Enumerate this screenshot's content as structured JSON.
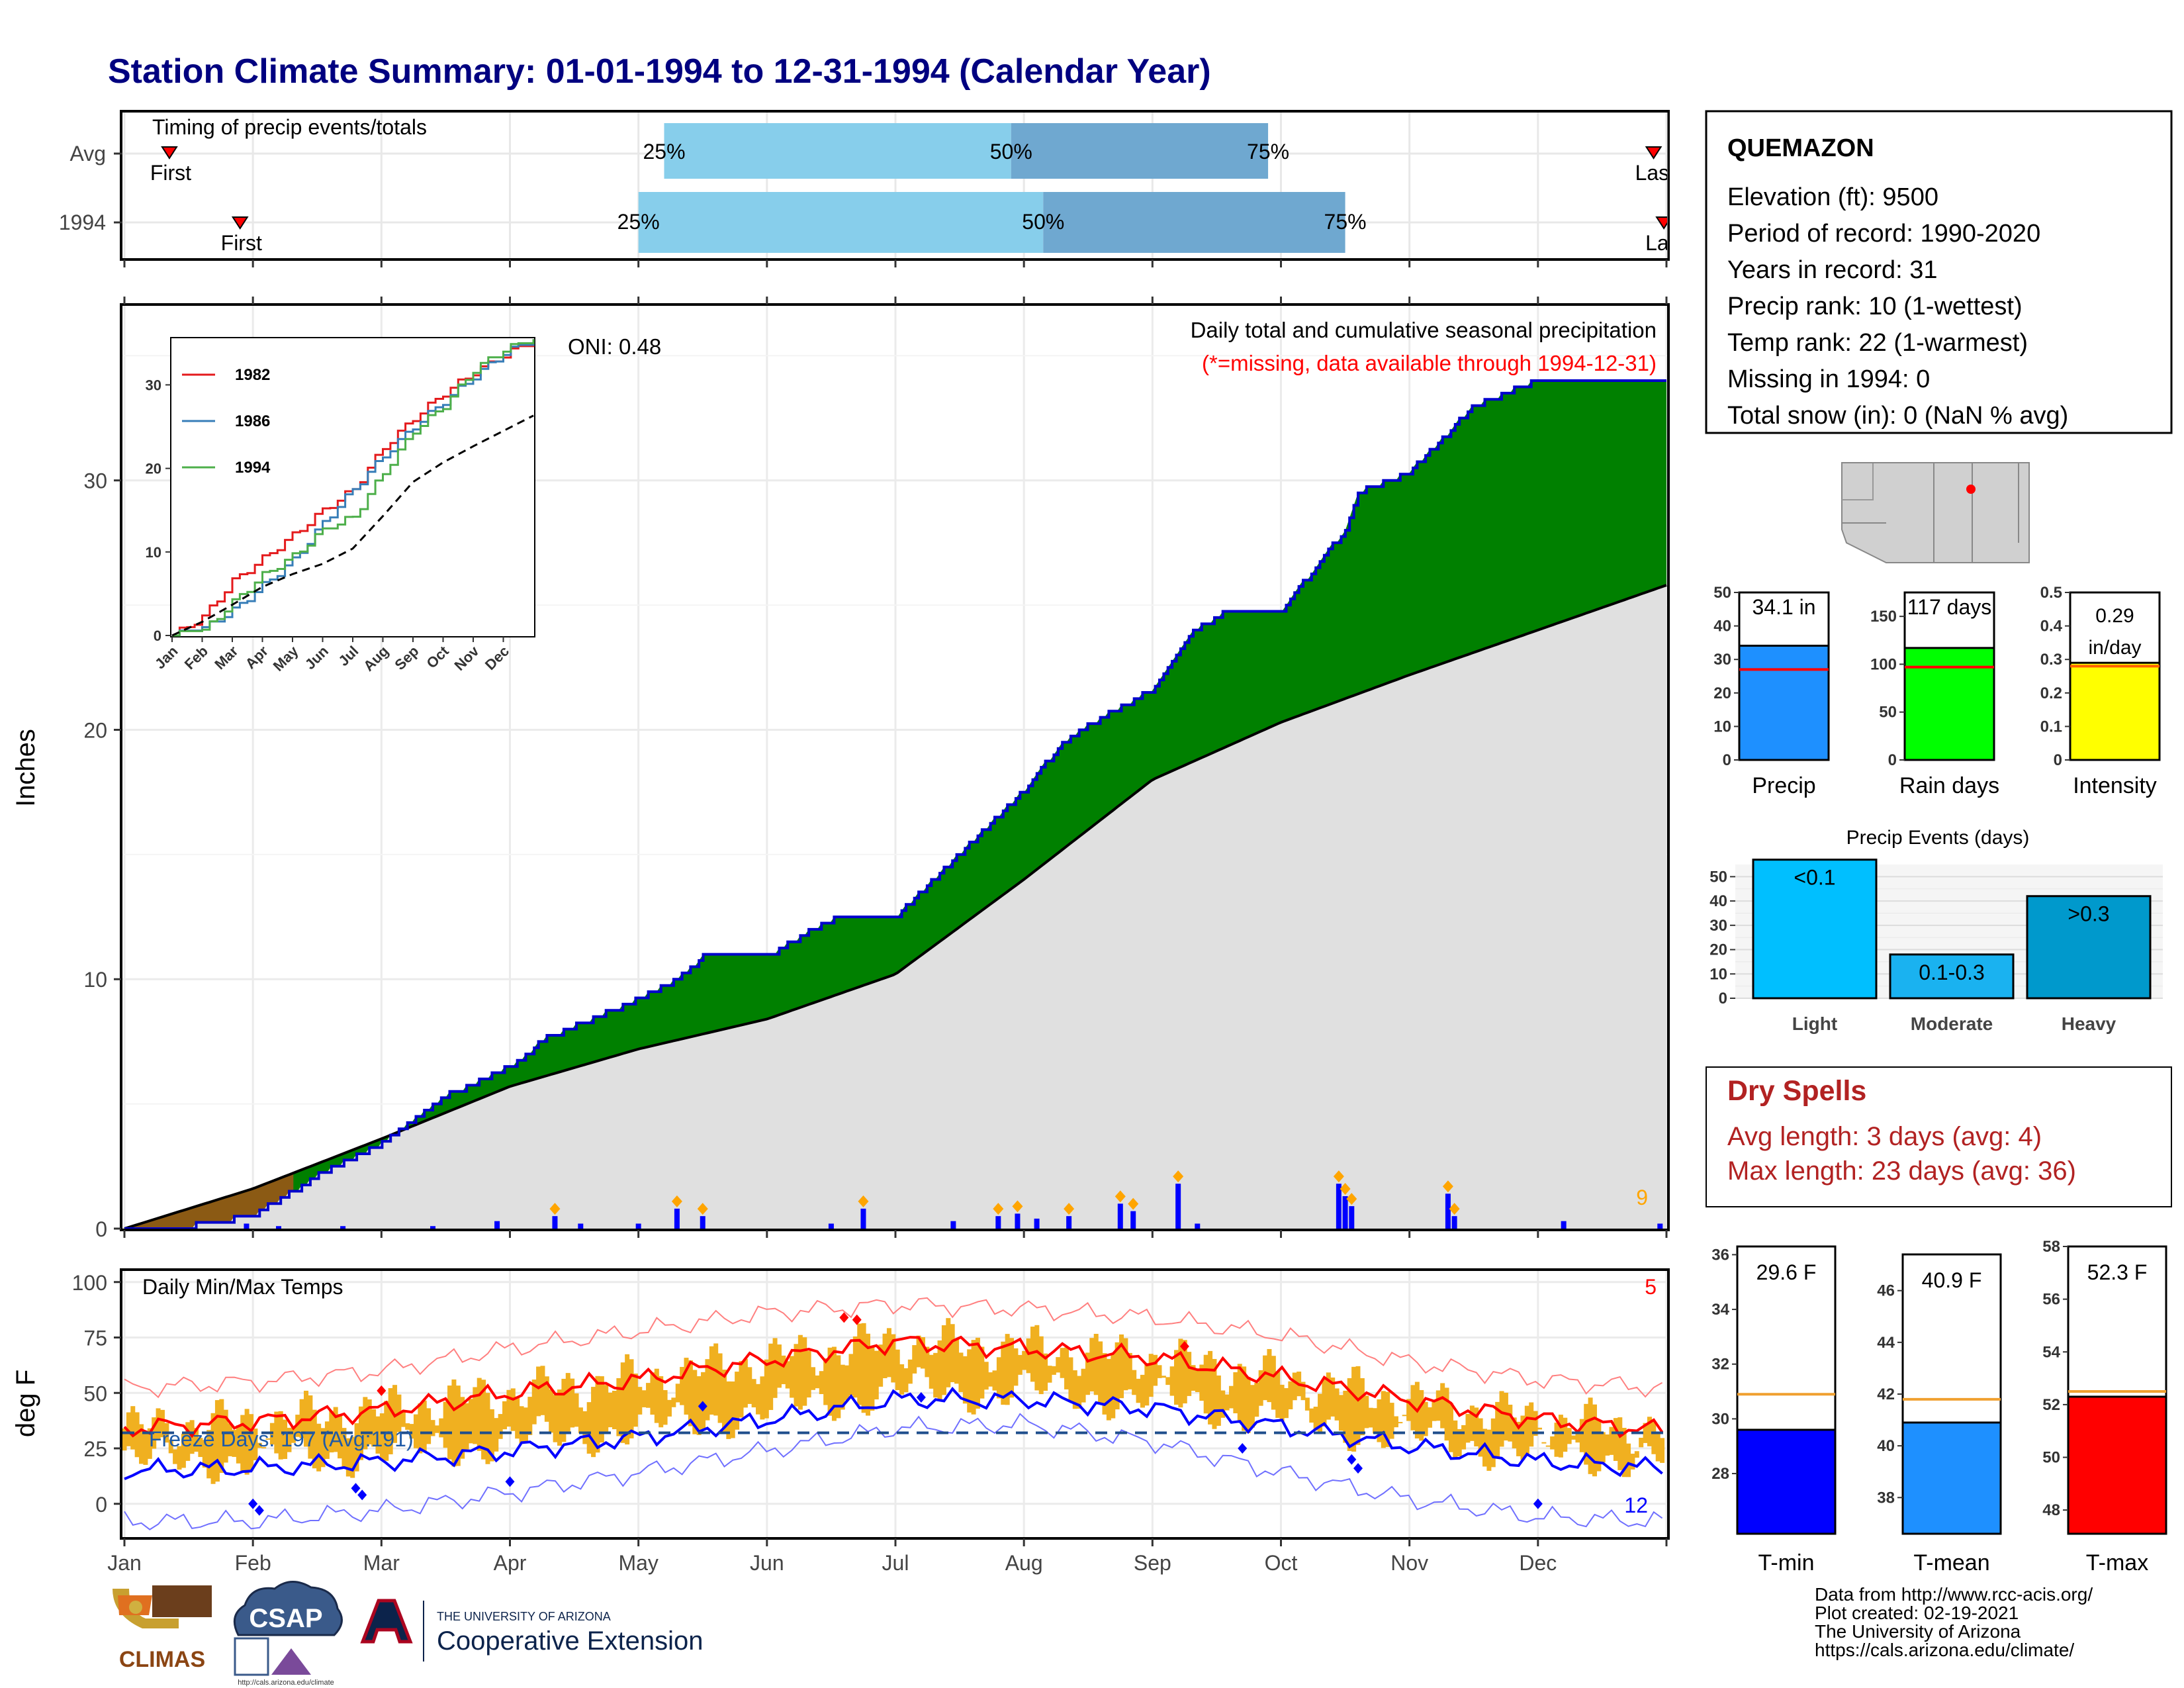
{
  "title": "Station Climate Summary: 01-01-1994 to 12-31-1994 (Calendar Year)",
  "timing": {
    "label": "Timing of precip events/totals",
    "rows": [
      {
        "label": "Avg",
        "first_label": "First",
        "last_label": "Last",
        "first_month": 0.35,
        "last_month": 11.9,
        "p25": 4.2,
        "p50": 6.9,
        "p75": 8.9,
        "p25_label": "25%",
        "p50_label": "50%",
        "p75_label": "75%"
      },
      {
        "label": "1994",
        "first_label": "First",
        "last_label": "Last",
        "first_month": 0.9,
        "last_month": 11.98,
        "p25": 4.0,
        "p50": 7.15,
        "p75": 9.5,
        "p25_label": "25%",
        "p50_label": "50%",
        "p75_label": "75%"
      }
    ]
  },
  "precip_panel": {
    "ylabel": "Inches",
    "yticks": [
      "0",
      "10",
      "20",
      "30"
    ],
    "note1": "Daily total and cumulative seasonal precipitation",
    "note2": "(*=missing, data available through 1994-12-31)",
    "oni": "ONI: 0.48",
    "count_label": "9",
    "inset": {
      "series": [
        {
          "name": "1982",
          "color": "#e41a1c"
        },
        {
          "name": "1986",
          "color": "#377eb8"
        },
        {
          "name": "1994",
          "color": "#4daf4a"
        }
      ],
      "yticks": [
        "0",
        "10",
        "20",
        "30"
      ],
      "xticks": [
        "Jan",
        "Feb",
        "Mar",
        "Apr",
        "May",
        "Jun",
        "Jul",
        "Aug",
        "Sep",
        "Oct",
        "Nov",
        "Dec"
      ]
    }
  },
  "temp_panel": {
    "ylabel": "deg F",
    "label": "Daily Min/Max Temps",
    "freeze": "Freeze Days: 197 (Avg:191)",
    "hot_count": "5",
    "cold_count": "12",
    "yticks": [
      "0",
      "25",
      "50",
      "75",
      "100"
    ],
    "months": [
      "Jan",
      "Feb",
      "Mar",
      "Apr",
      "May",
      "Jun",
      "Jul",
      "Aug",
      "Sep",
      "Oct",
      "Nov",
      "Dec"
    ]
  },
  "station": {
    "name": "QUEMAZON",
    "lines": [
      "Elevation (ft): 9500",
      "Period of record: 1990-2020",
      "Years in record: 31",
      "Precip rank: 10 (1-wettest)",
      "Temp rank: 22 (1-warmest)",
      "Missing in 1994: 0",
      "Total snow (in): 0 (NaN % avg)"
    ]
  },
  "chart_data": [
    {
      "type": "area",
      "title": "Daily total and cumulative seasonal precipitation",
      "ylabel": "Inches",
      "ylim": [
        0,
        37
      ],
      "x_unit": "month",
      "cumulative_1994": {
        "x": [
          0,
          0.5,
          1.0,
          1.5,
          2.0,
          2.5,
          3.0,
          3.3,
          3.6,
          4.0,
          4.3,
          4.5,
          5.0,
          5.5,
          6.0,
          6.5,
          7.0,
          7.3,
          7.6,
          8.0,
          8.3,
          8.6,
          9.0,
          9.5,
          9.6,
          10.0,
          10.5,
          11.0,
          11.5,
          12.0
        ],
        "values": [
          0.0,
          0.1,
          0.5,
          2.1,
          3.4,
          5.3,
          6.5,
          7.7,
          8.3,
          9.2,
          10.0,
          10.9,
          10.9,
          12.4,
          12.5,
          15.0,
          17.6,
          19.5,
          20.5,
          21.6,
          23.9,
          24.8,
          24.8,
          28.0,
          29.5,
          30.3,
          33.0,
          34.0,
          34.0,
          34.1
        ]
      },
      "cumulative_avg": {
        "x": [
          0,
          1,
          2,
          3,
          4,
          5,
          6,
          7,
          8,
          9,
          10,
          11,
          12
        ],
        "values": [
          0.0,
          1.6,
          3.6,
          5.7,
          7.2,
          8.4,
          10.2,
          14.0,
          18.0,
          20.3,
          22.2,
          24.0,
          25.8
        ]
      },
      "daily_events": [
        {
          "month": 0.95,
          "value": 0.2
        },
        {
          "month": 1.2,
          "value": 0.1
        },
        {
          "month": 1.7,
          "value": 0.1
        },
        {
          "month": 2.4,
          "value": 0.1
        },
        {
          "month": 2.9,
          "value": 0.3
        },
        {
          "month": 3.35,
          "value": 0.5
        },
        {
          "month": 3.55,
          "value": 0.2
        },
        {
          "month": 4.0,
          "value": 0.2
        },
        {
          "month": 4.3,
          "value": 0.8
        },
        {
          "month": 4.5,
          "value": 0.5
        },
        {
          "month": 5.5,
          "value": 0.2
        },
        {
          "month": 5.75,
          "value": 0.8
        },
        {
          "month": 6.45,
          "value": 0.3
        },
        {
          "month": 6.8,
          "value": 0.5
        },
        {
          "month": 6.95,
          "value": 0.6
        },
        {
          "month": 7.1,
          "value": 0.4
        },
        {
          "month": 7.35,
          "value": 0.5
        },
        {
          "month": 7.75,
          "value": 1.0
        },
        {
          "month": 7.85,
          "value": 0.7
        },
        {
          "month": 8.2,
          "value": 1.8
        },
        {
          "month": 8.35,
          "value": 0.2
        },
        {
          "month": 9.45,
          "value": 1.8
        },
        {
          "month": 9.5,
          "value": 1.3
        },
        {
          "month": 9.55,
          "value": 0.9
        },
        {
          "month": 10.3,
          "value": 1.4
        },
        {
          "month": 10.35,
          "value": 0.5
        },
        {
          "month": 11.2,
          "value": 0.3
        },
        {
          "month": 11.95,
          "value": 0.2
        }
      ]
    },
    {
      "type": "line",
      "title": "Daily Min/Max Temps",
      "ylabel": "deg F",
      "ylim": [
        -15,
        105
      ],
      "x": [
        0,
        1,
        2,
        3,
        4,
        5,
        6,
        7,
        8,
        9,
        10,
        11,
        12
      ],
      "series": [
        {
          "name": "avg max",
          "values": [
            34,
            37,
            42,
            50,
            56,
            65,
            73,
            70,
            66,
            57,
            47,
            38,
            33
          ]
        },
        {
          "name": "avg min",
          "values": [
            15,
            16,
            19,
            24,
            30,
            38,
            47,
            47,
            43,
            35,
            26,
            19,
            16
          ]
        },
        {
          "name": "record max",
          "values": [
            52,
            55,
            60,
            70,
            78,
            86,
            90,
            88,
            84,
            76,
            64,
            56,
            52
          ]
        },
        {
          "name": "record min",
          "values": [
            -8,
            -8,
            -3,
            5,
            14,
            24,
            34,
            36,
            28,
            14,
            2,
            -6,
            -8
          ]
        }
      ],
      "freeze_line": 32,
      "freeze_days": 197,
      "freeze_days_avg": 191
    },
    {
      "type": "bar",
      "categories": [
        "Precip",
        "Rain days",
        "Intensity"
      ],
      "values": [
        34.1,
        117,
        0.29
      ],
      "avg": [
        27,
        97,
        0.28
      ],
      "labels": [
        "34.1 in",
        "117 days",
        "0.29 in/day"
      ],
      "ylim": [
        [
          0,
          50
        ],
        [
          0,
          175
        ],
        [
          0,
          0.5
        ]
      ],
      "colors": [
        "#1e90ff",
        "#00ff00",
        "#ffff00"
      ]
    },
    {
      "type": "bar",
      "title": "Precip Events (days)",
      "categories": [
        "Light",
        "Moderate",
        "Heavy"
      ],
      "labels": [
        "<0.1",
        "0.1-0.3",
        ">0.3"
      ],
      "values": [
        57,
        18,
        42
      ],
      "ylim": [
        0,
        55
      ],
      "colors": [
        "#00bfff",
        "#1ab2f0",
        "#0099cc"
      ]
    },
    {
      "type": "bar",
      "categories": [
        "T-min",
        "T-mean",
        "T-max"
      ],
      "values": [
        29.6,
        40.9,
        52.3
      ],
      "avg": [
        30.9,
        41.8,
        52.5
      ],
      "labels": [
        "29.6 F",
        "40.9 F",
        "52.3 F"
      ],
      "ylim": [
        [
          25.8,
          36.3
        ],
        [
          36.6,
          47.4
        ],
        [
          47.1,
          58.0
        ]
      ],
      "colors": [
        "#0000ff",
        "#1e90ff",
        "#ff0000"
      ]
    }
  ],
  "dry_spells": {
    "title": "Dry Spells",
    "avg_length": "Avg length: 3 days (avg: 4)",
    "max_length": "Max length: 23 days (avg: 36)"
  },
  "footer": {
    "lines": [
      "Data from http://www.rcc-acis.org/",
      "Plot created: 02-19-2021",
      "The University of Arizona",
      "https://cals.arizona.edu/climate/"
    ],
    "climas": "CLIMAS",
    "csap": "CSAP",
    "csap_url": "http://cals.arizona.edu/climate",
    "ua_small": "THE UNIVERSITY OF ARIZONA",
    "ua_big": "Cooperative Extension"
  }
}
